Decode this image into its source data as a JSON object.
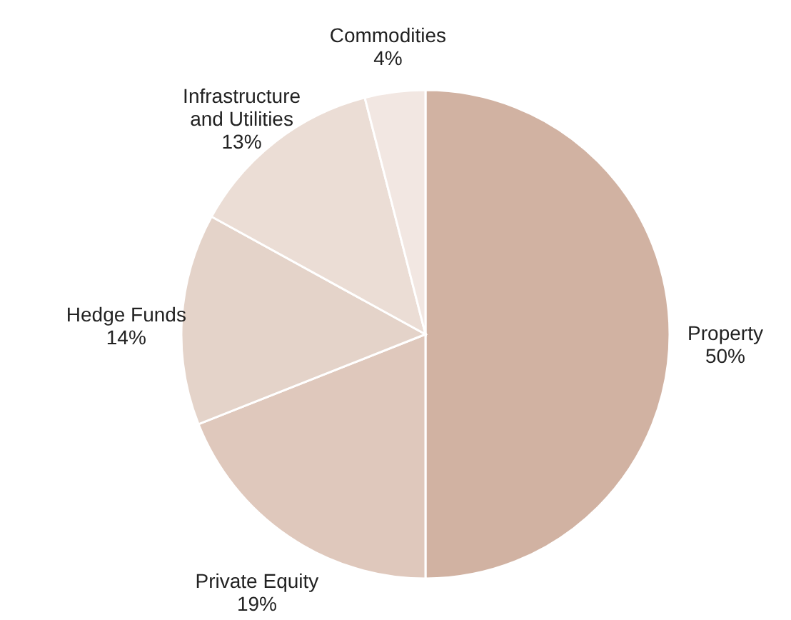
{
  "chart_data": {
    "type": "pie",
    "categories": [
      "Property",
      "Private Equity",
      "Hedge Funds",
      "Infrastructure and Utilities",
      "Commodities"
    ],
    "values": [
      50,
      19,
      14,
      13,
      4
    ],
    "colors": [
      "#d1b2a2",
      "#dfc8bc",
      "#e4d3c9",
      "#ebddd5",
      "#f2e7e2"
    ],
    "value_labels": [
      "50%",
      "19%",
      "14%",
      "13%",
      "4%"
    ]
  }
}
